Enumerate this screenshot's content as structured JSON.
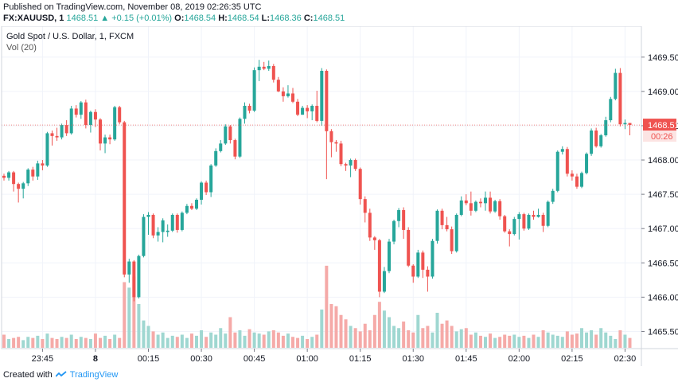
{
  "header": {
    "published": "Published on TradingView.com, November 08, 2019 02:26:35 UTC",
    "symbol": "FX:XAUUSD, 1",
    "price": "1468.51",
    "change": "▲ +0.15 (+0.01%)",
    "o_label": "O:",
    "o_value": "1468.54",
    "h_label": "H:",
    "h_value": "1468.54",
    "l_label": "L:",
    "l_value": "1468.36",
    "c_label": "C:",
    "c_value": "1468.51"
  },
  "legend": {
    "title": "Gold Spot / U.S. Dollar, 1, FXCM",
    "volume": "Vol (20)"
  },
  "footer": {
    "created_with": "Created with",
    "brand": "TradingView",
    "logo": "tradingview-logo-icon"
  },
  "colors": {
    "up": "#26a69a",
    "down": "#ef5350",
    "vol_up": "#9fd7d1",
    "vol_down": "#f5aaa8",
    "grid": "#f0f3fa",
    "axis": "#787b86",
    "last_price": "#ef5350"
  },
  "chart_data": {
    "type": "candlestick",
    "title": "Gold Spot / U.S. Dollar, 1, FXCM",
    "ylim": [
      1465.25,
      1469.95
    ],
    "yticks": [
      "1469.50",
      "1469.00",
      "1468.50",
      "1468.00",
      "1467.50",
      "1467.00",
      "1466.50",
      "1466.00",
      "1465.50"
    ],
    "xticks": [
      {
        "label": "23:45",
        "i": 8
      },
      {
        "label": "8",
        "i": 19
      },
      {
        "label": "00:15",
        "i": 30
      },
      {
        "label": "00:30",
        "i": 41
      },
      {
        "label": "00:45",
        "i": 52
      },
      {
        "label": "01:00",
        "i": 63
      },
      {
        "label": "01:15",
        "i": 74
      },
      {
        "label": "01:30",
        "i": 85
      },
      {
        "label": "01:45",
        "i": 96
      },
      {
        "label": "02:00",
        "i": 107
      },
      {
        "label": "02:15",
        "i": 118
      },
      {
        "label": "02:30",
        "i": 129
      }
    ],
    "last_price": "1468.51",
    "countdown": "00:26",
    "candles": [
      [
        1467.77,
        1467.74,
        1467.8,
        1467.7
      ],
      [
        1467.74,
        1467.82,
        1467.84,
        1467.7
      ],
      [
        1467.82,
        1467.65,
        1467.84,
        1467.54
      ],
      [
        1467.65,
        1467.58,
        1467.67,
        1467.38
      ],
      [
        1467.58,
        1467.66,
        1467.68,
        1467.44
      ],
      [
        1467.66,
        1467.86,
        1467.88,
        1467.62
      ],
      [
        1467.86,
        1467.76,
        1467.9,
        1467.7
      ],
      [
        1467.76,
        1467.95,
        1467.99,
        1467.71
      ],
      [
        1467.95,
        1467.92,
        1468.0,
        1467.85
      ],
      [
        1467.92,
        1468.39,
        1468.41,
        1467.9
      ],
      [
        1468.39,
        1468.35,
        1468.43,
        1468.21
      ],
      [
        1468.35,
        1468.33,
        1468.47,
        1468.28
      ],
      [
        1468.33,
        1468.51,
        1468.53,
        1468.3
      ],
      [
        1468.51,
        1468.39,
        1468.58,
        1468.35
      ],
      [
        1468.39,
        1468.75,
        1468.79,
        1468.37
      ],
      [
        1468.75,
        1468.66,
        1468.8,
        1468.62
      ],
      [
        1468.66,
        1468.84,
        1468.86,
        1468.6
      ],
      [
        1468.84,
        1468.51,
        1468.88,
        1468.46
      ],
      [
        1468.51,
        1468.7,
        1468.72,
        1468.4
      ],
      [
        1468.7,
        1468.59,
        1468.74,
        1468.48
      ],
      [
        1468.59,
        1468.24,
        1468.61,
        1468.14
      ],
      [
        1468.24,
        1468.33,
        1468.37,
        1468.1
      ],
      [
        1468.33,
        1468.3,
        1468.37,
        1468.23
      ],
      [
        1468.3,
        1468.77,
        1468.79,
        1468.28
      ],
      [
        1468.77,
        1468.55,
        1468.79,
        1468.52
      ],
      [
        1468.55,
        1466.33,
        1468.57,
        1466.29
      ],
      [
        1466.33,
        1466.52,
        1466.56,
        1466.21
      ],
      [
        1466.52,
        1466.0,
        1466.54,
        1465.94
      ],
      [
        1466.0,
        1466.6,
        1466.62,
        1465.98
      ],
      [
        1466.6,
        1467.17,
        1467.21,
        1466.58
      ],
      [
        1467.17,
        1467.2,
        1467.24,
        1466.91
      ],
      [
        1467.2,
        1466.9,
        1467.22,
        1466.86
      ],
      [
        1466.9,
        1466.95,
        1467.02,
        1466.81
      ],
      [
        1466.95,
        1467.12,
        1467.15,
        1466.8
      ],
      [
        1466.95,
        1466.97,
        1467.06,
        1466.88
      ],
      [
        1466.97,
        1467.2,
        1467.22,
        1466.95
      ],
      [
        1467.2,
        1466.98,
        1467.22,
        1466.94
      ],
      [
        1466.98,
        1467.23,
        1467.25,
        1466.96
      ],
      [
        1467.23,
        1467.33,
        1467.36,
        1467.21
      ],
      [
        1467.33,
        1467.29,
        1467.37,
        1467.27
      ],
      [
        1467.29,
        1467.42,
        1467.44,
        1467.27
      ],
      [
        1467.42,
        1467.67,
        1467.69,
        1467.35
      ],
      [
        1467.67,
        1467.53,
        1467.7,
        1467.49
      ],
      [
        1467.53,
        1467.92,
        1467.94,
        1467.46
      ],
      [
        1467.92,
        1468.13,
        1468.17,
        1467.9
      ],
      [
        1468.13,
        1468.24,
        1468.29,
        1468.11
      ],
      [
        1468.24,
        1468.49,
        1468.52,
        1468.22
      ],
      [
        1468.49,
        1468.29,
        1468.51,
        1468.24
      ],
      [
        1468.29,
        1468.05,
        1468.31,
        1468.01
      ],
      [
        1468.05,
        1468.6,
        1468.62,
        1468.03
      ],
      [
        1468.6,
        1468.79,
        1468.84,
        1468.53
      ],
      [
        1468.79,
        1468.72,
        1468.82,
        1468.68
      ],
      [
        1468.72,
        1469.31,
        1469.35,
        1468.7
      ],
      [
        1469.31,
        1469.36,
        1469.46,
        1469.15
      ],
      [
        1469.36,
        1469.33,
        1469.43,
        1469.31
      ],
      [
        1469.33,
        1469.37,
        1469.45,
        1469.3
      ],
      [
        1469.37,
        1469.17,
        1469.4,
        1469.13
      ],
      [
        1469.17,
        1469.0,
        1469.21,
        1468.99
      ],
      [
        1469.0,
        1468.93,
        1469.06,
        1468.85
      ],
      [
        1468.93,
        1468.97,
        1469.09,
        1468.91
      ],
      [
        1468.97,
        1468.85,
        1469.05,
        1468.83
      ],
      [
        1468.85,
        1468.66,
        1468.89,
        1468.64
      ],
      [
        1468.66,
        1468.76,
        1468.79,
        1468.66
      ],
      [
        1468.76,
        1468.71,
        1468.8,
        1468.61
      ],
      [
        1468.71,
        1468.79,
        1468.81,
        1468.58
      ],
      [
        1468.79,
        1468.57,
        1469.01,
        1468.55
      ],
      [
        1468.57,
        1469.3,
        1469.34,
        1468.5
      ],
      [
        1469.3,
        1468.42,
        1469.32,
        1467.72
      ],
      [
        1468.42,
        1468.26,
        1468.45,
        1468.04
      ],
      [
        1468.26,
        1468.24,
        1468.29,
        1468.12
      ],
      [
        1468.24,
        1467.94,
        1468.28,
        1467.91
      ],
      [
        1467.94,
        1467.92,
        1467.96,
        1467.84
      ],
      [
        1467.92,
        1468.0,
        1468.02,
        1467.75
      ],
      [
        1468.0,
        1467.87,
        1468.02,
        1467.84
      ],
      [
        1467.87,
        1467.43,
        1467.89,
        1467.35
      ],
      [
        1467.43,
        1467.23,
        1467.47,
        1467.09
      ],
      [
        1467.23,
        1466.87,
        1467.29,
        1466.82
      ],
      [
        1466.87,
        1466.83,
        1466.89,
        1466.69
      ],
      [
        1466.83,
        1466.08,
        1466.85,
        1466.0
      ],
      [
        1466.08,
        1466.38,
        1466.44,
        1466.06
      ],
      [
        1466.38,
        1466.81,
        1466.85,
        1466.35
      ],
      [
        1466.81,
        1467.11,
        1467.13,
        1466.77
      ],
      [
        1467.11,
        1467.27,
        1467.3,
        1467.02
      ],
      [
        1467.27,
        1466.98,
        1467.31,
        1466.85
      ],
      [
        1466.98,
        1466.46,
        1467.02,
        1466.44
      ],
      [
        1466.46,
        1466.3,
        1466.48,
        1466.21
      ],
      [
        1466.3,
        1466.65,
        1466.69,
        1466.28
      ],
      [
        1466.65,
        1466.4,
        1466.68,
        1466.28
      ],
      [
        1466.4,
        1466.3,
        1466.45,
        1466.08
      ],
      [
        1466.3,
        1466.82,
        1466.85,
        1466.27
      ],
      [
        1466.82,
        1467.26,
        1467.28,
        1466.78
      ],
      [
        1467.26,
        1467.05,
        1467.29,
        1466.99
      ],
      [
        1467.05,
        1466.99,
        1467.17,
        1466.96
      ],
      [
        1466.99,
        1466.67,
        1467.03,
        1466.63
      ],
      [
        1466.67,
        1467.2,
        1467.22,
        1466.65
      ],
      [
        1467.2,
        1467.41,
        1467.47,
        1467.18
      ],
      [
        1467.41,
        1467.37,
        1467.5,
        1467.34
      ],
      [
        1467.37,
        1467.26,
        1467.54,
        1467.19
      ],
      [
        1467.26,
        1467.39,
        1467.41,
        1467.24
      ],
      [
        1467.39,
        1467.37,
        1467.44,
        1467.31
      ],
      [
        1467.37,
        1467.45,
        1467.54,
        1467.26
      ],
      [
        1467.45,
        1467.25,
        1467.54,
        1467.22
      ],
      [
        1467.25,
        1467.4,
        1467.42,
        1467.23
      ],
      [
        1467.4,
        1467.18,
        1467.43,
        1467.13
      ],
      [
        1467.18,
        1466.96,
        1467.2,
        1466.94
      ],
      [
        1466.96,
        1466.92,
        1466.99,
        1466.74
      ],
      [
        1466.92,
        1467.14,
        1467.17,
        1466.9
      ],
      [
        1467.14,
        1467.21,
        1467.24,
        1466.84
      ],
      [
        1467.21,
        1467.0,
        1467.23,
        1466.97
      ],
      [
        1467.0,
        1467.2,
        1467.22,
        1466.98
      ],
      [
        1467.2,
        1467.17,
        1467.26,
        1467.13
      ],
      [
        1467.17,
        1467.2,
        1467.29,
        1467.16
      ],
      [
        1467.2,
        1467.04,
        1467.23,
        1466.95
      ],
      [
        1467.04,
        1467.39,
        1467.41,
        1467.02
      ],
      [
        1467.39,
        1467.55,
        1467.58,
        1467.36
      ],
      [
        1467.55,
        1468.12,
        1468.14,
        1467.53
      ],
      [
        1468.12,
        1468.16,
        1468.2,
        1468.08
      ],
      [
        1468.16,
        1467.8,
        1468.19,
        1467.76
      ],
      [
        1467.8,
        1467.76,
        1467.85,
        1467.7
      ],
      [
        1467.76,
        1467.61,
        1467.8,
        1467.58
      ],
      [
        1467.61,
        1467.81,
        1467.83,
        1467.59
      ],
      [
        1467.81,
        1468.09,
        1468.11,
        1467.79
      ],
      [
        1468.09,
        1468.43,
        1468.46,
        1468.06
      ],
      [
        1468.43,
        1468.2,
        1468.47,
        1468.18
      ],
      [
        1468.2,
        1468.36,
        1468.38,
        1468.18
      ],
      [
        1468.36,
        1468.58,
        1468.63,
        1468.34
      ],
      [
        1468.58,
        1468.89,
        1468.92,
        1468.55
      ],
      [
        1468.89,
        1469.27,
        1469.33,
        1468.87
      ],
      [
        1469.27,
        1468.52,
        1469.34,
        1468.49
      ],
      [
        1468.52,
        1468.54,
        1468.59,
        1468.45
      ],
      [
        1468.54,
        1468.51,
        1468.54,
        1468.36
      ]
    ],
    "volume": [
      12,
      8,
      9,
      10,
      7,
      10,
      9,
      11,
      8,
      13,
      9,
      8,
      10,
      9,
      12,
      8,
      10,
      9,
      8,
      13,
      9,
      11,
      8,
      12,
      9,
      60,
      55,
      65,
      40,
      25,
      20,
      15,
      12,
      14,
      9,
      11,
      10,
      12,
      9,
      13,
      11,
      16,
      10,
      14,
      12,
      18,
      13,
      28,
      14,
      16,
      11,
      17,
      14,
      13,
      12,
      15,
      16,
      14,
      11,
      13,
      10,
      9,
      11,
      8,
      10,
      12,
      35,
      75,
      40,
      38,
      30,
      26,
      20,
      18,
      15,
      22,
      16,
      30,
      42,
      34,
      28,
      20,
      18,
      24,
      16,
      14,
      30,
      18,
      20,
      14,
      32,
      22,
      25,
      20,
      15,
      17,
      18,
      12,
      14,
      11,
      10,
      13,
      9,
      10,
      12,
      11,
      12,
      10,
      11,
      9,
      12,
      10,
      16,
      14,
      12,
      11,
      10,
      15,
      12,
      13,
      18,
      14,
      16,
      12,
      18,
      14,
      11,
      8,
      16,
      12,
      9
    ]
  }
}
